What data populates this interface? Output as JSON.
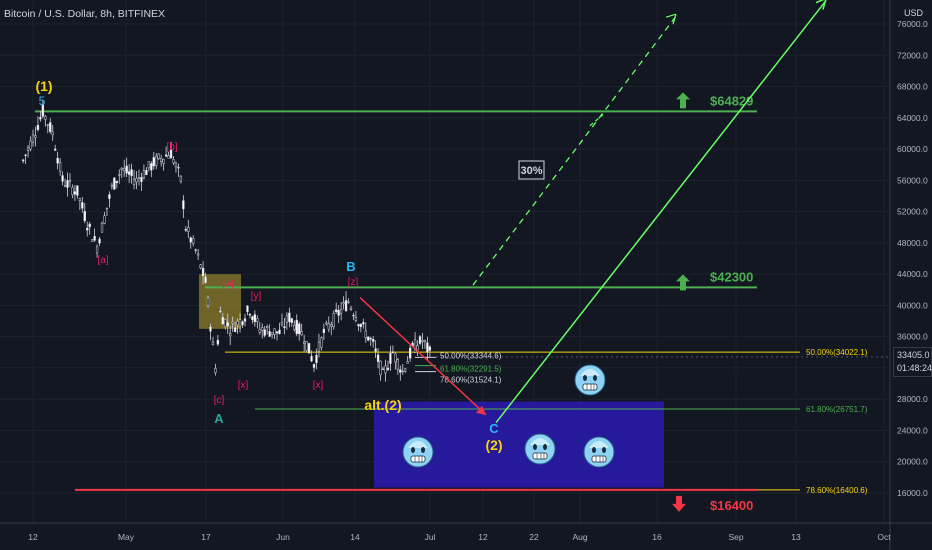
{
  "header": {
    "title": "Bitcoin / U.S. Dollar, 8h, BITFINEX",
    "currency": "USD"
  },
  "current": {
    "price": "33405.0",
    "countdown": "01:48:24"
  },
  "chart_data": {
    "type": "candlestick",
    "symbol": "BTCUSD",
    "ylim": [
      13500,
      79000
    ],
    "y_ticks": [
      16000,
      20000,
      24000,
      28000,
      32000,
      36000,
      40000,
      44000,
      48000,
      52000,
      56000,
      60000,
      64000,
      68000,
      72000,
      76000
    ],
    "x_ticks": [
      "12",
      "May",
      "17",
      "Jun",
      "14",
      "Jul",
      "12",
      "22",
      "Aug",
      "16",
      "Sep",
      "13",
      "Oct"
    ],
    "price_path": [
      [
        "Apr 10",
        58500
      ],
      [
        "Apr 12",
        61500
      ],
      [
        "Apr 14",
        64800
      ],
      [
        "Apr 16",
        62000
      ],
      [
        "Apr 18",
        56000
      ],
      [
        "Apr 21",
        54500
      ],
      [
        "Apr 23",
        50500
      ],
      [
        "Apr 25",
        47500
      ],
      [
        "Apr 28",
        55000
      ],
      [
        "Apr 30",
        57500
      ],
      [
        "May 3",
        56000
      ],
      [
        "May 7",
        58500
      ],
      [
        "May 10",
        59500
      ],
      [
        "May 12",
        56000
      ],
      [
        "May 13",
        50000
      ],
      [
        "May 15",
        47000
      ],
      [
        "May 17",
        43000
      ],
      [
        "May 19",
        32000
      ],
      [
        "May 20",
        39000
      ],
      [
        "May 22",
        37000
      ],
      [
        "May 24",
        38000
      ],
      [
        "May 26",
        39500
      ],
      [
        "May 28",
        37000
      ],
      [
        "Jun 1",
        36500
      ],
      [
        "Jun 3",
        38500
      ],
      [
        "Jun 6",
        36000
      ],
      [
        "Jun 8",
        32500
      ],
      [
        "Jun 10",
        36500
      ],
      [
        "Jun 13",
        39000
      ],
      [
        "Jun 15",
        40500
      ],
      [
        "Jun 18",
        37000
      ],
      [
        "Jun 20",
        35000
      ],
      [
        "Jun 22",
        31000
      ],
      [
        "Jun 24",
        34000
      ],
      [
        "Jun 26",
        31500
      ],
      [
        "Jun 28",
        34500
      ],
      [
        "Jun 30",
        35500
      ],
      [
        "Jul 2",
        33400
      ]
    ],
    "horizontal_levels": [
      {
        "price": 64829,
        "color": "#4caf50",
        "label": "$64829"
      },
      {
        "price": 42300,
        "color": "#4caf50",
        "label": "$42300"
      },
      {
        "price": 16400,
        "color": "#f23645",
        "label": "$16400"
      }
    ],
    "fibonacci_levels": [
      {
        "label": "50.00%(34022.1)",
        "price": 34022.1,
        "color": "#f5d50a"
      },
      {
        "label": "61.80%(26751.7)",
        "price": 26751.7,
        "color": "#4caf50"
      },
      {
        "label": "78.60%(16400.6)",
        "price": 16400.6,
        "color": "#f5d50a"
      },
      {
        "label": "50.00%(33344.6)",
        "price": 33344.6,
        "color": "#d1d4dc"
      },
      {
        "label": "61.80%(32291.5)",
        "price": 32291.5,
        "color": "#4caf50"
      },
      {
        "label": "78.60%(31524.1)",
        "price": 31524.1,
        "color": "#d1d4dc"
      }
    ],
    "target_zone": {
      "price_top": 27700,
      "price_bottom": 16700,
      "color": "#2a1aa8"
    },
    "wave_labels": [
      {
        "text": "(1)",
        "color": "#f5d50a"
      },
      {
        "text": "5",
        "color": "#29b6f6"
      },
      {
        "text": "[b]",
        "color": "#e91e63"
      },
      {
        "text": "[a]",
        "color": "#e91e63"
      },
      {
        "text": "[w]",
        "color": "#e91e63"
      },
      {
        "text": "[y]",
        "color": "#e91e63"
      },
      {
        "text": "[c]",
        "color": "#e91e63"
      },
      {
        "text": "A",
        "color": "#26a69a"
      },
      {
        "text": "[x]",
        "color": "#e91e63"
      },
      {
        "text": "[x]",
        "color": "#e91e63"
      },
      {
        "text": "B",
        "color": "#29b6f6"
      },
      {
        "text": "[z]",
        "color": "#e91e63"
      },
      {
        "text": "alt.(2)",
        "color": "#f5d50a"
      },
      {
        "text": "C",
        "color": "#29b6f6"
      },
      {
        "text": "(2)",
        "color": "#f5d50a"
      }
    ],
    "annotations": [
      {
        "text": "30%"
      }
    ],
    "emoji_icons": [
      "cold-face-icon",
      "cold-face-icon",
      "cold-face-icon",
      "cold-face-icon"
    ]
  }
}
